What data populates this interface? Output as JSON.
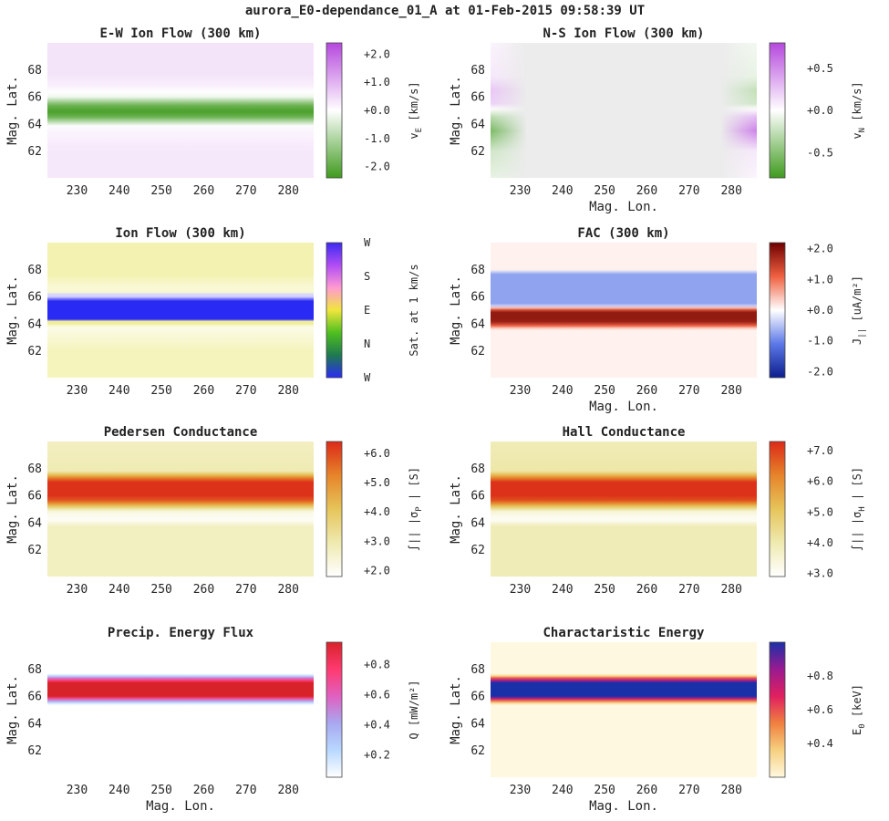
{
  "figure": {
    "suptitle": "aurora_E0-dependance_01_A at 01-Feb-2015 09:58:39 UT"
  },
  "chart_data": [
    {
      "type": "heatmap",
      "title": "E-W Ion Flow (300 km)",
      "xlabel": "",
      "ylabel": "Mag. Lat.",
      "xlim": [
        223,
        286
      ],
      "ylim": [
        60,
        70
      ],
      "xticks": [
        230,
        240,
        250,
        260,
        270,
        280
      ],
      "yticks": [
        62,
        64,
        66,
        68
      ],
      "colorbar": {
        "label_main": "v",
        "label_sub": "E",
        "label_unit": "[km/s]",
        "range": [
          -2.4,
          2.4
        ],
        "ticks": [
          "+2.0",
          "+1.0",
          "+0.0",
          "-1.0",
          "-2.0"
        ],
        "tick_values": [
          2.0,
          1.0,
          0.0,
          -1.0,
          -2.0
        ],
        "colors": [
          "#3f9b1e",
          "#ffffff",
          "#b548dd"
        ]
      },
      "field": {
        "description_values": "v_E (km/s) vs magnetic latitude",
        "lat": [
          60,
          62,
          63.8,
          64.5,
          64.9,
          65.4,
          66.0,
          66.8,
          67.6,
          70
        ],
        "value": [
          0.3,
          0.3,
          0.1,
          -1.8,
          -2.3,
          -1.8,
          -0.2,
          0.2,
          0.35,
          0.35
        ]
      }
    },
    {
      "type": "heatmap",
      "title": "N-S Ion Flow (300 km)",
      "xlabel": "Mag. Lon.",
      "ylabel": "Mag. Lat.",
      "xlim": [
        223,
        286
      ],
      "ylim": [
        60,
        70
      ],
      "xticks": [
        230,
        240,
        250,
        260,
        270,
        280
      ],
      "yticks": [
        62,
        64,
        66,
        68
      ],
      "colorbar": {
        "label_main": "v",
        "label_sub": "N",
        "label_unit": "[km/s]",
        "range": [
          -0.8,
          0.8
        ],
        "ticks": [
          "+0.5",
          "+0.0",
          "-0.5"
        ],
        "tick_values": [
          0.5,
          0.0,
          -0.5
        ],
        "colors": [
          "#3f9b1e",
          "#ffffff",
          "#b548dd"
        ]
      },
      "field": {
        "description_values": "v_N (km/s), nonzero near longitude edges",
        "edge_west": {
          "lat": [
            60,
            62,
            63.5,
            64.5,
            65.5,
            66.5,
            67.5,
            70
          ],
          "value": [
            -0.1,
            -0.2,
            -0.55,
            -0.3,
            0.2,
            0.25,
            0.1,
            0.05
          ]
        },
        "edge_east": {
          "lat": [
            60,
            62,
            63.5,
            64.5,
            65.5,
            66.5,
            67.5,
            70
          ],
          "value": [
            0.05,
            0.1,
            0.55,
            0.3,
            -0.2,
            -0.25,
            -0.1,
            -0.05
          ]
        }
      }
    },
    {
      "type": "heatmap",
      "title": "Ion Flow (300 km)",
      "xlabel": "",
      "ylabel": "Mag. Lat.",
      "xlim": [
        223,
        286
      ],
      "ylim": [
        60,
        70
      ],
      "xticks": [
        230,
        240,
        250,
        260,
        270,
        280
      ],
      "yticks": [
        62,
        64,
        66,
        68
      ],
      "colorbar": {
        "label_main": "Sat. at 1 km/s",
        "label_sub": "",
        "label_unit": "",
        "range": [
          0,
          4
        ],
        "ticks": [
          "W",
          "N",
          "E",
          "S",
          "W"
        ],
        "tick_values": [
          0,
          1,
          2,
          3,
          4
        ],
        "colors": [
          "#2a2af5",
          "#1e7a4f",
          "#4fbf1f",
          "#f0e63c",
          "#ff9ad2",
          "#b04cf5",
          "#3b2af0"
        ]
      },
      "field": {
        "description_values": "flow direction (hue) and magnitude (saturation, 1 km/s)",
        "lat": [
          60,
          62,
          63.8,
          64.5,
          64.9,
          65.4,
          66.0,
          66.8,
          67.6,
          70
        ],
        "direction": [
          "E",
          "E",
          "E",
          "W",
          "W",
          "W",
          "W",
          "E",
          "E",
          "E"
        ],
        "speed": [
          0.3,
          0.3,
          0.1,
          1.8,
          2.3,
          1.8,
          0.2,
          0.2,
          0.35,
          0.35
        ]
      }
    },
    {
      "type": "heatmap",
      "title": "FAC (300 km)",
      "xlabel": "Mag. Lon.",
      "ylabel": "Mag. Lat.",
      "xlim": [
        223,
        286
      ],
      "ylim": [
        60,
        70
      ],
      "xticks": [
        230,
        240,
        250,
        260,
        270,
        280
      ],
      "yticks": [
        62,
        64,
        66,
        68
      ],
      "colorbar": {
        "label_main": "J",
        "label_sub": "||",
        "label_unit": "[uA/m²]",
        "range": [
          -2.2,
          2.2
        ],
        "ticks": [
          "+2.0",
          "+1.0",
          "+0.0",
          "-1.0",
          "-2.0"
        ],
        "tick_values": [
          2.0,
          1.0,
          0.0,
          -1.0,
          -2.0
        ],
        "colors": [
          "#0c1e8c",
          "#5c78e8",
          "#ffffff",
          "#f06040",
          "#6e0000"
        ]
      },
      "field": {
        "description_values": "J|| (uA/m^2) vs magnetic latitude",
        "lat": [
          60,
          63.6,
          63.9,
          64.2,
          64.9,
          65.2,
          65.4,
          67.7,
          68.0,
          70
        ],
        "value": [
          0.1,
          0.1,
          1.3,
          1.9,
          1.9,
          0.3,
          -0.75,
          -0.75,
          0.1,
          0.1
        ]
      }
    },
    {
      "type": "heatmap",
      "title": "Pedersen Conductance",
      "xlabel": "",
      "ylabel": "Mag. Lat.",
      "xlim": [
        223,
        286
      ],
      "ylim": [
        60,
        70
      ],
      "xticks": [
        230,
        240,
        250,
        260,
        270,
        280
      ],
      "yticks": [
        62,
        64,
        66,
        68
      ],
      "colorbar": {
        "label_main": "∫|| |σ",
        "label_sub": "P",
        "label_unit": "| [S]",
        "range": [
          1.8,
          6.4
        ],
        "ticks": [
          "+6.0",
          "+5.0",
          "+4.0",
          "+3.0",
          "+2.0"
        ],
        "tick_values": [
          6.0,
          5.0,
          4.0,
          3.0,
          2.0
        ],
        "colors": [
          "#ffffff",
          "#efeab0",
          "#e6c45a",
          "#e6842a",
          "#dc2a18"
        ]
      },
      "field": {
        "description_values": "Sigma_P (S) vs magnetic latitude",
        "lat": [
          60,
          63.7,
          64.2,
          64.8,
          65.6,
          66.0,
          67.0,
          67.3,
          67.8,
          70
        ],
        "value": [
          2.7,
          2.7,
          1.9,
          2.2,
          5.8,
          6.3,
          6.3,
          5.3,
          2.9,
          2.7
        ]
      }
    },
    {
      "type": "heatmap",
      "title": "Hall Conductance",
      "xlabel": "",
      "ylabel": "Mag. Lat.",
      "xlim": [
        223,
        286
      ],
      "ylim": [
        60,
        70
      ],
      "xticks": [
        230,
        240,
        250,
        260,
        270,
        280
      ],
      "yticks": [
        62,
        64,
        66,
        68
      ],
      "colorbar": {
        "label_main": "∫|| |σ",
        "label_sub": "H",
        "label_unit": "| [S]",
        "range": [
          2.9,
          7.3
        ],
        "ticks": [
          "+7.0",
          "+6.0",
          "+5.0",
          "+4.0",
          "+3.0"
        ],
        "tick_values": [
          7.0,
          6.0,
          5.0,
          4.0,
          3.0
        ],
        "colors": [
          "#ffffff",
          "#efeab0",
          "#e6c45a",
          "#e6842a",
          "#dc2a18"
        ]
      },
      "field": {
        "description_values": "Sigma_H (S) vs magnetic latitude",
        "lat": [
          60,
          63.7,
          64.2,
          64.8,
          65.6,
          66.0,
          67.0,
          67.3,
          67.8,
          70
        ],
        "value": [
          3.9,
          3.9,
          3.0,
          3.4,
          6.8,
          7.2,
          7.2,
          6.2,
          4.1,
          3.9
        ]
      }
    },
    {
      "type": "heatmap",
      "title": "Precip. Energy Flux",
      "xlabel": "Mag. Lon.",
      "ylabel": "Mag. Lat.",
      "xlim": [
        223,
        286
      ],
      "ylim": [
        60,
        70
      ],
      "xticks": [
        230,
        240,
        250,
        260,
        270,
        280
      ],
      "yticks": [
        62,
        64,
        66,
        68
      ],
      "colorbar": {
        "label_main": "Q [mW/m²]",
        "label_sub": "",
        "label_unit": "",
        "range": [
          0.05,
          0.95
        ],
        "ticks": [
          "+0.8",
          "+0.6",
          "+0.4",
          "+0.2"
        ],
        "tick_values": [
          0.8,
          0.6,
          0.4,
          0.2
        ],
        "colors": [
          "#ffffff",
          "#b8d8ff",
          "#a8a8f0",
          "#e060c0",
          "#ff3a70",
          "#d8222a"
        ]
      },
      "field": {
        "description_values": "Q (mW/m^2) vs magnetic latitude",
        "lat": [
          60,
          65.4,
          65.7,
          66.0,
          67.0,
          67.3,
          67.6,
          70
        ],
        "value": [
          0.05,
          0.05,
          0.5,
          0.95,
          0.95,
          0.6,
          0.05,
          0.05
        ]
      }
    },
    {
      "type": "heatmap",
      "title": "Charactaristic Energy",
      "xlabel": "Mag. Lon.",
      "ylabel": "Mag. Lat.",
      "xlim": [
        223,
        286
      ],
      "ylim": [
        60,
        70
      ],
      "xticks": [
        230,
        240,
        250,
        260,
        270,
        280
      ],
      "yticks": [
        62,
        64,
        66,
        68
      ],
      "colorbar": {
        "label_main": "E",
        "label_sub": "0",
        "label_unit": "[keV]",
        "range": [
          0.2,
          1.0
        ],
        "ticks": [
          "+0.8",
          "+0.6",
          "+0.4"
        ],
        "tick_values": [
          0.8,
          0.6,
          0.4
        ],
        "colors": [
          "#fff8e0",
          "#f6d080",
          "#f08040",
          "#e02060",
          "#9a1a90",
          "#1a30a8"
        ]
      },
      "field": {
        "description_values": "E0 (keV) vs magnetic latitude",
        "lat": [
          60,
          65.4,
          65.7,
          66.0,
          67.0,
          67.3,
          67.6,
          70
        ],
        "value": [
          0.2,
          0.2,
          0.6,
          1.0,
          1.0,
          0.65,
          0.2,
          0.2
        ]
      }
    }
  ]
}
